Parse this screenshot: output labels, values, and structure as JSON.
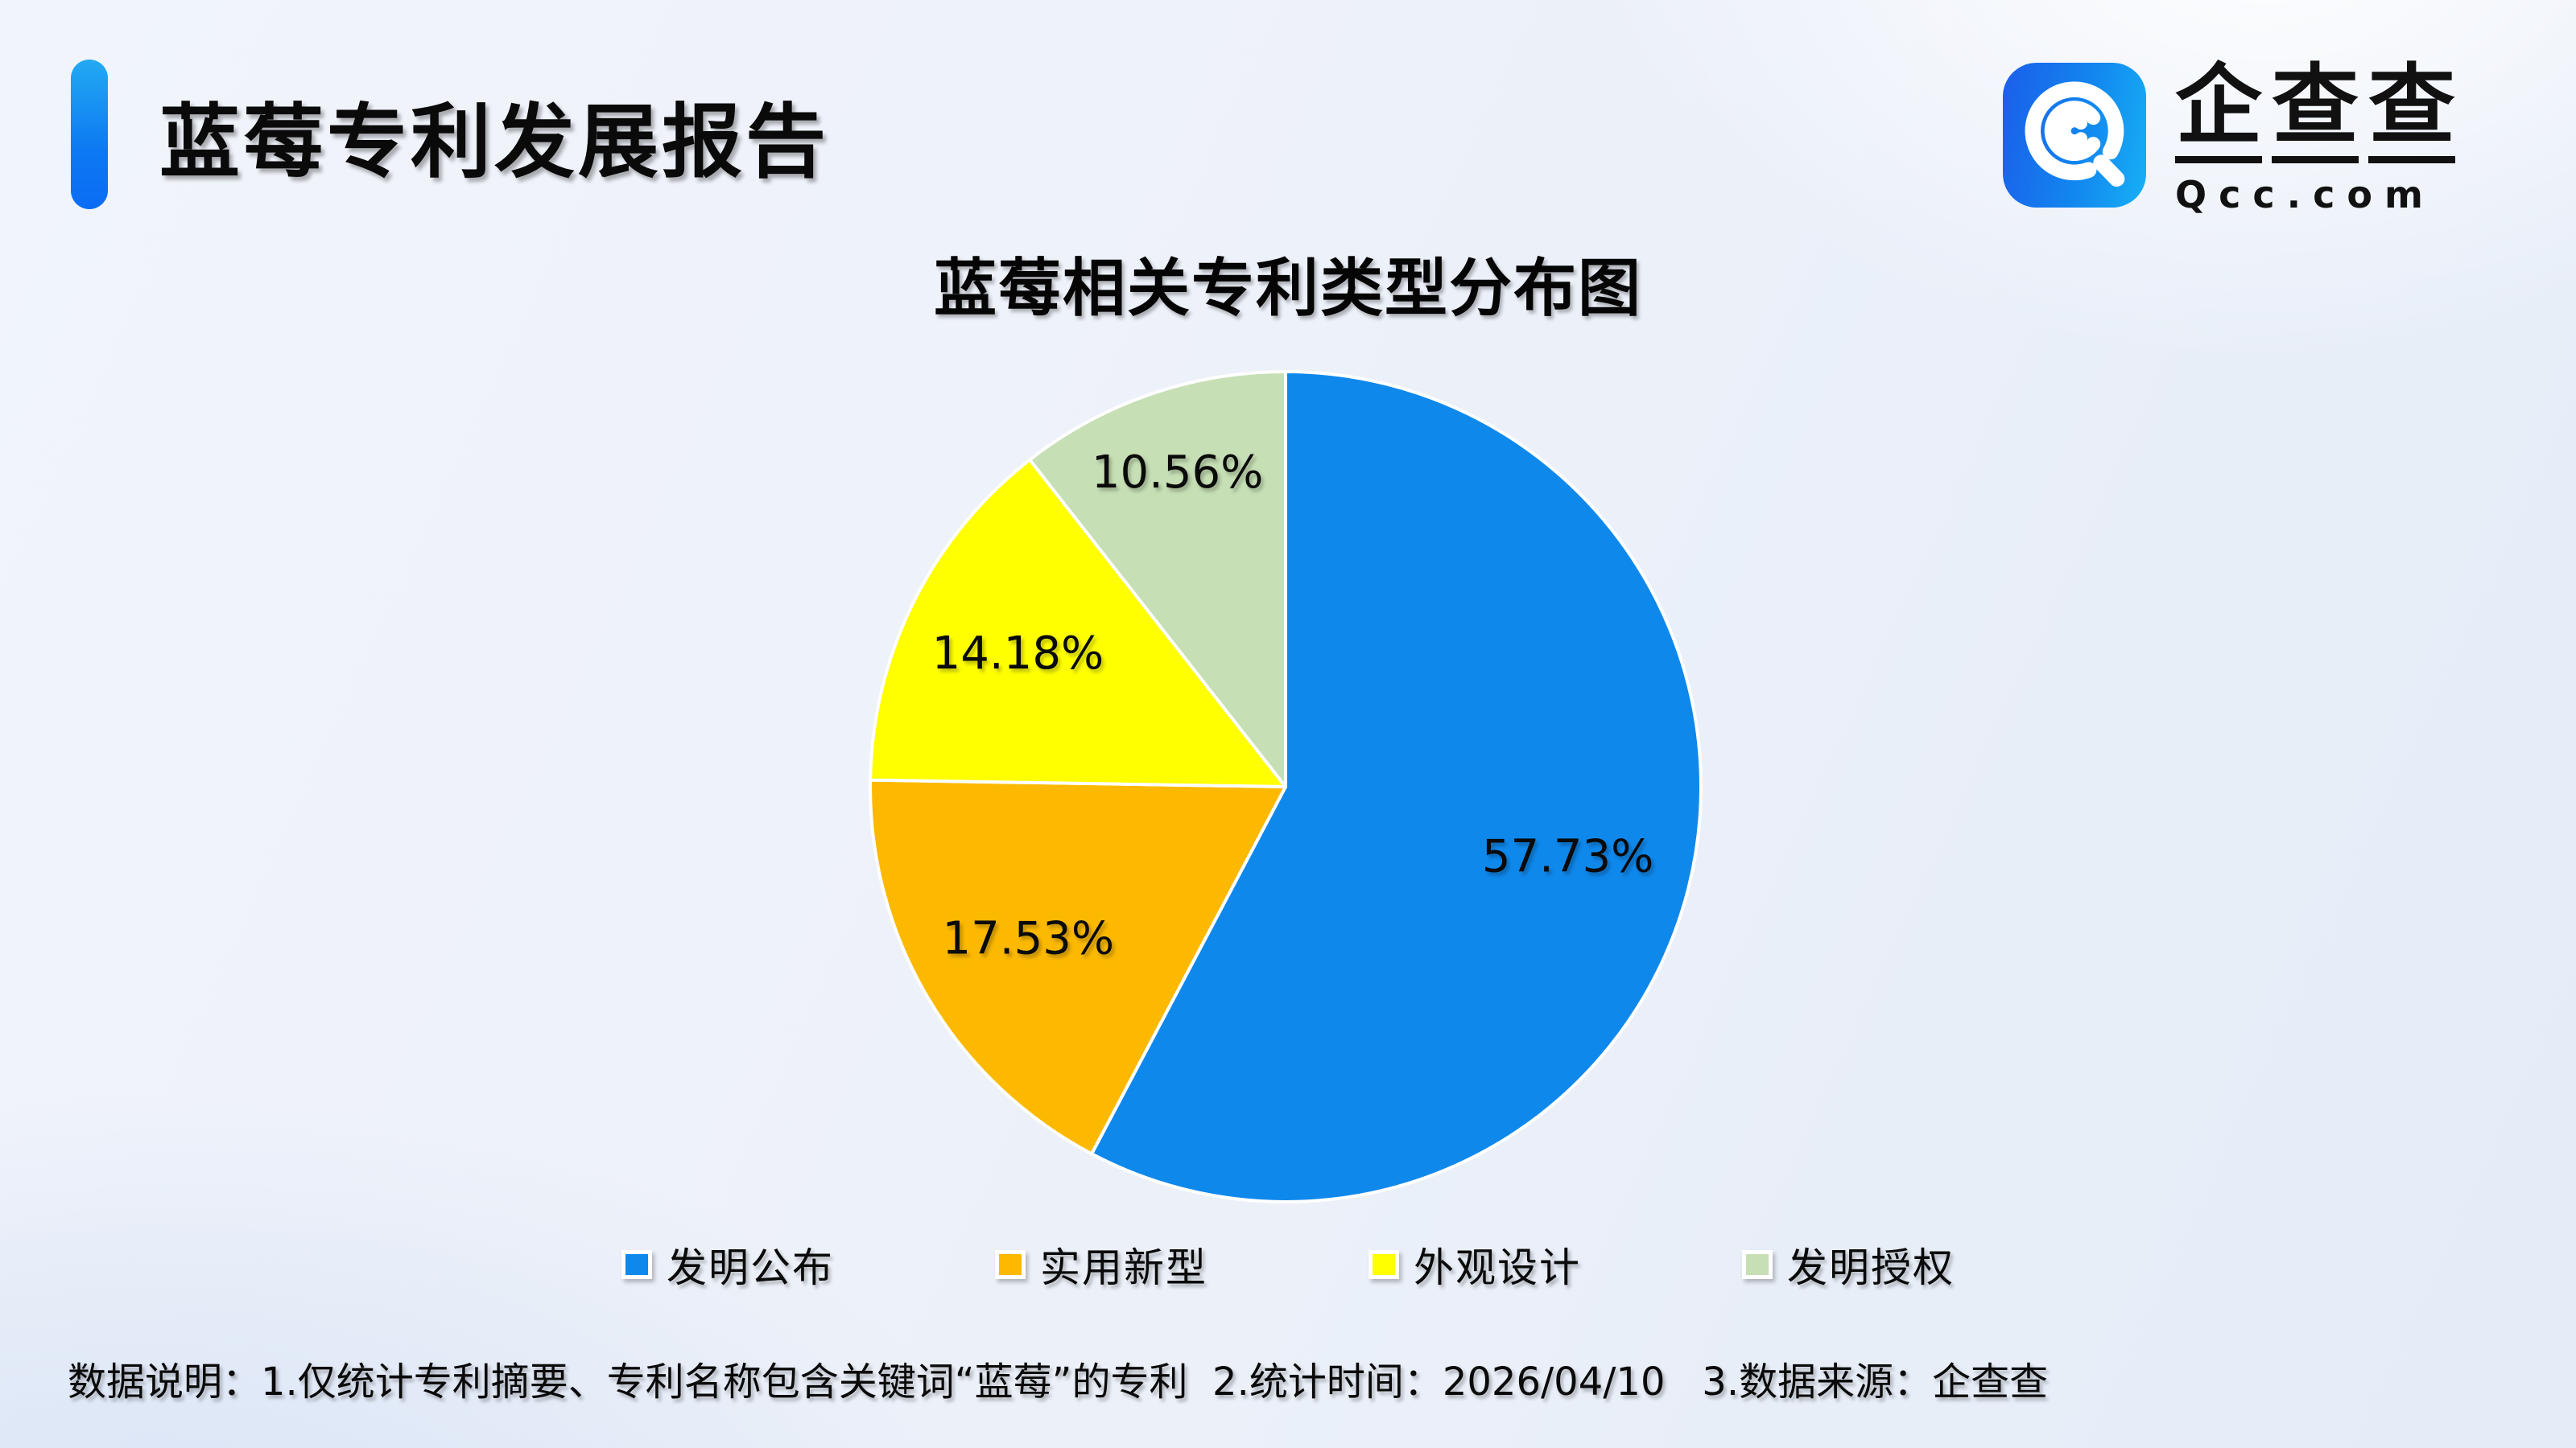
{
  "page": {
    "title": "蓝莓专利发展报告",
    "background_color": "#edf1f9",
    "accent_bar_gradient": [
      "#23aaf2",
      "#0b6cf4"
    ]
  },
  "logo": {
    "brand_chars": [
      "企",
      "查",
      "查"
    ],
    "domain": "Qcc.com",
    "icon": "qcc-magnifier-icon",
    "icon_gradient": [
      "#1b5ee9",
      "#17b0f5"
    ]
  },
  "chart_data": {
    "type": "pie",
    "title": "蓝莓相关专利类型分布图",
    "series": [
      {
        "label": "发明公布",
        "value": 57.73,
        "display": "57.73%",
        "color": "#0f88ec"
      },
      {
        "label": "实用新型",
        "value": 17.53,
        "display": "17.53%",
        "color": "#fcb900"
      },
      {
        "label": "外观设计",
        "value": 14.18,
        "display": "14.18%",
        "color": "#ffff00"
      },
      {
        "label": "发明授权",
        "value": 10.56,
        "display": "10.56%",
        "color": "#c6dfb5"
      }
    ],
    "start_angle_deg": 0,
    "direction": "clockwise",
    "stroke_color": "#ffffff",
    "stroke_width": 4,
    "label_radius": [
      0.7,
      0.72,
      0.72,
      0.8
    ],
    "legend_position": "bottom",
    "total": 100.0
  },
  "footer": {
    "note": "数据说明：1.仅统计专利摘要、专利名称包含关键词“蓝莓”的专利  2.统计时间：2026/04/10   3.数据来源：企查查"
  }
}
